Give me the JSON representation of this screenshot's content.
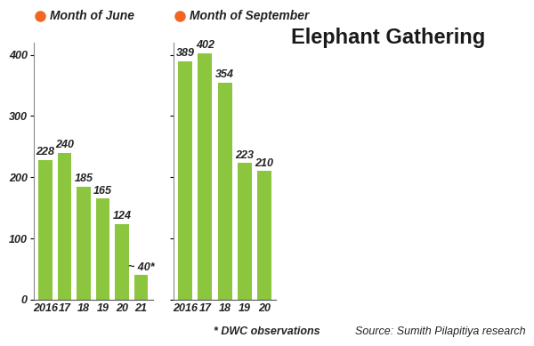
{
  "title": "Elephant Gathering",
  "footnote": "* DWC observations",
  "source": "Source: Sumith Pilapitiya research",
  "chart_data": [
    {
      "type": "bar",
      "title": "Month of June",
      "categories": [
        "2016",
        "17",
        "18",
        "19",
        "20",
        "21"
      ],
      "values": [
        228,
        240,
        185,
        165,
        124,
        40
      ],
      "value_labels": [
        "228",
        "240",
        "185",
        "165",
        "124",
        "~ 40*"
      ],
      "color": "#8cc63f",
      "data_labels": true,
      "ylim": [
        0,
        420
      ],
      "yticks": [
        0,
        100,
        200,
        300,
        400
      ]
    },
    {
      "type": "bar",
      "title": "Month of September",
      "categories": [
        "2016",
        "17",
        "18",
        "19",
        "20"
      ],
      "values": [
        389,
        402,
        354,
        223,
        210
      ],
      "color": "#8cc63f",
      "data_labels": true,
      "ylim": [
        0,
        420
      ],
      "yticks": [
        0,
        100,
        200,
        300,
        400
      ],
      "tick_labels": "x"
    }
  ]
}
